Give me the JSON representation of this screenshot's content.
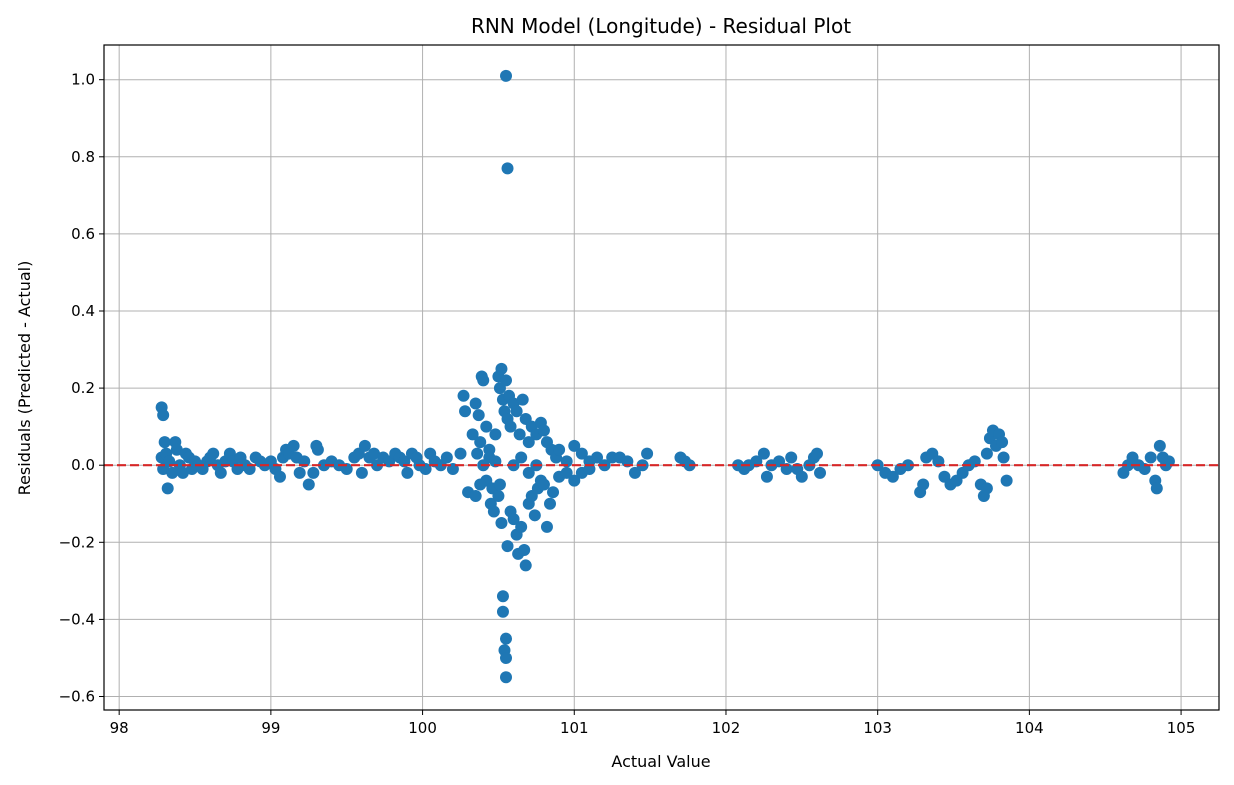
{
  "chart_data": {
    "type": "scatter",
    "title": "RNN Model (Longitude) - Residual Plot",
    "xlabel": "Actual Value",
    "ylabel": "Residuals (Predicted - Actual)",
    "xlim": [
      97.9,
      105.25
    ],
    "ylim": [
      -0.635,
      1.09
    ],
    "xticks": [
      98,
      99,
      100,
      101,
      102,
      103,
      104,
      105
    ],
    "xtick_labels": [
      "98",
      "99",
      "100",
      "101",
      "102",
      "103",
      "104",
      "105"
    ],
    "yticks": [
      -0.6,
      -0.4,
      -0.2,
      0.0,
      0.2,
      0.4,
      0.6,
      0.8,
      1.0
    ],
    "ytick_labels": [
      "−0.6",
      "−0.4",
      "−0.2",
      "0.0",
      "0.2",
      "0.4",
      "0.6",
      "0.8",
      "1.0"
    ],
    "grid": true,
    "marker_color": "#1f77b4",
    "reference_line": {
      "y": 0.0,
      "color": "#d62728",
      "style": "dashed"
    },
    "series": [
      {
        "points": [
          [
            98.28,
            0.15
          ],
          [
            98.29,
            0.13
          ],
          [
            98.3,
            0.06
          ],
          [
            98.32,
            -0.06
          ],
          [
            98.28,
            0.02
          ],
          [
            98.29,
            -0.01
          ],
          [
            98.31,
            0.03
          ],
          [
            98.33,
            0.01
          ],
          [
            98.35,
            -0.02
          ],
          [
            98.37,
            0.06
          ],
          [
            98.38,
            0.04
          ],
          [
            98.4,
            0.0
          ],
          [
            98.42,
            -0.02
          ],
          [
            98.44,
            0.03
          ],
          [
            98.46,
            0.02
          ],
          [
            98.48,
            -0.01
          ],
          [
            98.5,
            0.01
          ],
          [
            98.52,
            0.0
          ],
          [
            98.55,
            -0.01
          ],
          [
            98.58,
            0.01
          ],
          [
            98.6,
            0.02
          ],
          [
            98.62,
            0.03
          ],
          [
            98.65,
            0.0
          ],
          [
            98.67,
            -0.02
          ],
          [
            98.7,
            0.01
          ],
          [
            98.73,
            0.03
          ],
          [
            98.75,
            0.01
          ],
          [
            98.78,
            -0.01
          ],
          [
            98.8,
            0.02
          ],
          [
            98.83,
            0.0
          ],
          [
            98.86,
            -0.01
          ],
          [
            98.9,
            0.02
          ],
          [
            98.93,
            0.01
          ],
          [
            98.96,
            0.0
          ],
          [
            99.0,
            0.01
          ],
          [
            99.03,
            -0.01
          ],
          [
            99.06,
            -0.03
          ],
          [
            99.08,
            0.02
          ],
          [
            99.1,
            0.04
          ],
          [
            99.12,
            0.03
          ],
          [
            99.15,
            0.05
          ],
          [
            99.17,
            0.02
          ],
          [
            99.19,
            -0.02
          ],
          [
            99.22,
            0.01
          ],
          [
            99.25,
            -0.05
          ],
          [
            99.28,
            -0.02
          ],
          [
            99.3,
            0.05
          ],
          [
            99.31,
            0.04
          ],
          [
            99.35,
            0.0
          ],
          [
            99.4,
            0.01
          ],
          [
            99.45,
            0.0
          ],
          [
            99.5,
            -0.01
          ],
          [
            99.55,
            0.02
          ],
          [
            99.58,
            0.03
          ],
          [
            99.6,
            -0.02
          ],
          [
            99.62,
            0.05
          ],
          [
            99.65,
            0.02
          ],
          [
            99.68,
            0.03
          ],
          [
            99.7,
            0.0
          ],
          [
            99.74,
            0.02
          ],
          [
            99.78,
            0.01
          ],
          [
            99.82,
            0.03
          ],
          [
            99.85,
            0.02
          ],
          [
            99.88,
            0.01
          ],
          [
            99.9,
            -0.02
          ],
          [
            99.93,
            0.03
          ],
          [
            99.96,
            0.02
          ],
          [
            99.98,
            0.0
          ],
          [
            100.02,
            -0.01
          ],
          [
            100.05,
            0.03
          ],
          [
            100.08,
            0.01
          ],
          [
            100.12,
            0.0
          ],
          [
            100.16,
            0.02
          ],
          [
            100.2,
            -0.01
          ],
          [
            100.25,
            0.03
          ],
          [
            100.27,
            0.18
          ],
          [
            100.28,
            0.14
          ],
          [
            100.3,
            -0.07
          ],
          [
            100.33,
            0.08
          ],
          [
            100.35,
            0.16
          ],
          [
            100.37,
            0.13
          ],
          [
            100.38,
            0.06
          ],
          [
            100.39,
            0.23
          ],
          [
            100.4,
            0.22
          ],
          [
            100.42,
            0.1
          ],
          [
            100.44,
            0.04
          ],
          [
            100.45,
            -0.1
          ],
          [
            100.47,
            -0.12
          ],
          [
            100.48,
            0.08
          ],
          [
            100.5,
            0.23
          ],
          [
            100.51,
            0.2
          ],
          [
            100.52,
            0.25
          ],
          [
            100.53,
            0.17
          ],
          [
            100.54,
            0.14
          ],
          [
            100.55,
            0.22
          ],
          [
            100.56,
            0.12
          ],
          [
            100.57,
            0.18
          ],
          [
            100.58,
            0.1
          ],
          [
            100.6,
            0.16
          ],
          [
            100.62,
            0.14
          ],
          [
            100.64,
            0.08
          ],
          [
            100.66,
            0.17
          ],
          [
            100.68,
            0.12
          ],
          [
            100.7,
            0.06
          ],
          [
            100.72,
            0.1
          ],
          [
            100.75,
            0.08
          ],
          [
            100.78,
            0.11
          ],
          [
            100.8,
            0.09
          ],
          [
            100.82,
            0.06
          ],
          [
            100.85,
            0.04
          ],
          [
            100.88,
            0.02
          ],
          [
            100.9,
            0.04
          ],
          [
            100.95,
            0.01
          ],
          [
            101.0,
            0.05
          ],
          [
            101.05,
            0.03
          ],
          [
            101.1,
            0.01
          ],
          [
            101.15,
            0.02
          ],
          [
            101.2,
            0.0
          ],
          [
            101.25,
            0.02
          ],
          [
            101.3,
            0.02
          ],
          [
            101.35,
            0.01
          ],
          [
            101.4,
            -0.02
          ],
          [
            101.45,
            0.0
          ],
          [
            101.48,
            0.03
          ],
          [
            100.42,
            -0.04
          ],
          [
            100.44,
            0.02
          ],
          [
            100.46,
            -0.06
          ],
          [
            100.48,
            0.01
          ],
          [
            100.5,
            -0.08
          ],
          [
            100.51,
            -0.05
          ],
          [
            100.52,
            -0.15
          ],
          [
            100.53,
            -0.34
          ],
          [
            100.53,
            -0.38
          ],
          [
            100.54,
            -0.48
          ],
          [
            100.55,
            -0.5
          ],
          [
            100.55,
            -0.45
          ],
          [
            100.55,
            -0.55
          ],
          [
            100.56,
            -0.21
          ],
          [
            100.58,
            -0.12
          ],
          [
            100.6,
            -0.14
          ],
          [
            100.62,
            -0.18
          ],
          [
            100.63,
            -0.23
          ],
          [
            100.65,
            -0.16
          ],
          [
            100.67,
            -0.22
          ],
          [
            100.68,
            -0.26
          ],
          [
            100.7,
            -0.1
          ],
          [
            100.72,
            -0.08
          ],
          [
            100.74,
            -0.13
          ],
          [
            100.76,
            -0.06
          ],
          [
            100.78,
            -0.04
          ],
          [
            100.8,
            -0.05
          ],
          [
            100.82,
            -0.16
          ],
          [
            100.84,
            -0.1
          ],
          [
            100.86,
            -0.07
          ],
          [
            100.9,
            -0.03
          ],
          [
            100.95,
            -0.02
          ],
          [
            101.0,
            -0.04
          ],
          [
            101.05,
            -0.02
          ],
          [
            101.1,
            -0.01
          ],
          [
            100.35,
            -0.08
          ],
          [
            100.38,
            -0.05
          ],
          [
            100.4,
            0.0
          ],
          [
            100.36,
            0.03
          ],
          [
            100.6,
            0.0
          ],
          [
            100.65,
            0.02
          ],
          [
            100.7,
            -0.02
          ],
          [
            100.75,
            0.0
          ],
          [
            100.55,
            1.01
          ],
          [
            100.56,
            0.77
          ],
          [
            101.7,
            0.02
          ],
          [
            101.73,
            0.01
          ],
          [
            101.76,
            0.0
          ],
          [
            102.08,
            0.0
          ],
          [
            102.12,
            -0.01
          ],
          [
            102.15,
            0.0
          ],
          [
            102.2,
            0.01
          ],
          [
            102.25,
            0.03
          ],
          [
            102.27,
            -0.03
          ],
          [
            102.3,
            0.0
          ],
          [
            102.35,
            0.01
          ],
          [
            102.4,
            -0.01
          ],
          [
            102.43,
            0.02
          ],
          [
            102.47,
            -0.01
          ],
          [
            102.5,
            -0.03
          ],
          [
            102.55,
            0.0
          ],
          [
            102.58,
            0.02
          ],
          [
            102.6,
            0.03
          ],
          [
            102.62,
            -0.02
          ],
          [
            103.0,
            0.0
          ],
          [
            103.05,
            -0.02
          ],
          [
            103.1,
            -0.03
          ],
          [
            103.15,
            -0.01
          ],
          [
            103.2,
            0.0
          ],
          [
            103.28,
            -0.07
          ],
          [
            103.3,
            -0.05
          ],
          [
            103.32,
            0.02
          ],
          [
            103.36,
            0.03
          ],
          [
            103.4,
            0.01
          ],
          [
            103.44,
            -0.03
          ],
          [
            103.48,
            -0.05
          ],
          [
            103.52,
            -0.04
          ],
          [
            103.56,
            -0.02
          ],
          [
            103.6,
            0.0
          ],
          [
            103.64,
            0.01
          ],
          [
            103.68,
            -0.05
          ],
          [
            103.7,
            -0.08
          ],
          [
            103.72,
            0.03
          ],
          [
            103.74,
            0.07
          ],
          [
            103.76,
            0.09
          ],
          [
            103.78,
            0.05
          ],
          [
            103.8,
            0.08
          ],
          [
            103.82,
            0.06
          ],
          [
            103.83,
            0.02
          ],
          [
            103.85,
            -0.04
          ],
          [
            103.72,
            -0.06
          ],
          [
            104.62,
            -0.02
          ],
          [
            104.65,
            0.0
          ],
          [
            104.68,
            0.02
          ],
          [
            104.72,
            0.0
          ],
          [
            104.76,
            -0.01
          ],
          [
            104.8,
            0.02
          ],
          [
            104.83,
            -0.04
          ],
          [
            104.84,
            -0.06
          ],
          [
            104.86,
            0.05
          ],
          [
            104.88,
            0.02
          ],
          [
            104.9,
            0.0
          ],
          [
            104.92,
            0.01
          ]
        ]
      }
    ]
  }
}
